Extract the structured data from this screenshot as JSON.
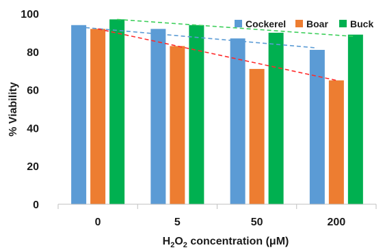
{
  "chart_data": {
    "type": "bar",
    "categories": [
      "0",
      "5",
      "50",
      "200"
    ],
    "series": [
      {
        "name": "Cockerel",
        "color": "#5b9bd5",
        "values": [
          94,
          92,
          87,
          81
        ]
      },
      {
        "name": "Boar",
        "color": "#ed7d31",
        "values": [
          92,
          83,
          71,
          65
        ]
      },
      {
        "name": "Buck",
        "color": "#00b050",
        "values": [
          97,
          94,
          90,
          89
        ]
      }
    ],
    "trendlines": [
      {
        "series": "Cockerel",
        "color": "#5b9bd5",
        "style": "dashed",
        "from": 93,
        "to": 82
      },
      {
        "series": "Boar",
        "color": "#ff2a2a",
        "style": "dashed",
        "from": 92,
        "to": 65
      },
      {
        "series": "Buck",
        "color": "#3ccf5a",
        "style": "dashed",
        "from": 97,
        "to": 88
      }
    ],
    "ylabel": "% Viability",
    "xlabel_parts": {
      "pre": "H",
      "sub1": "2",
      "mid": "O",
      "sub2": "2",
      "post": " concentration (μM)"
    },
    "ylim": [
      0,
      100
    ],
    "yticks": [
      0,
      20,
      40,
      60,
      80,
      100
    ],
    "grid": false,
    "legend_position": "top-right"
  }
}
